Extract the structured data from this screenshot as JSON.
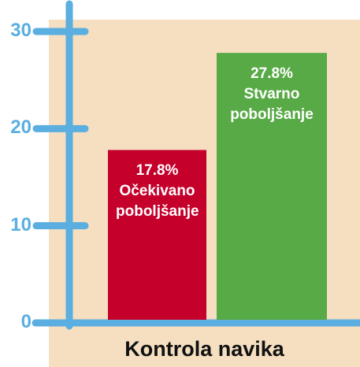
{
  "chart_data": {
    "type": "bar",
    "x_label": "Kontrola navika",
    "categories": [
      "Očekivano poboljšanje",
      "Stvarno poboljšanje"
    ],
    "values": [
      17.8,
      27.8
    ],
    "value_labels": [
      "17.8%",
      "27.8%"
    ],
    "colors": [
      "#c4002b",
      "#58aa46"
    ],
    "ylim": [
      0,
      30
    ],
    "yticks": [
      0,
      10,
      20,
      30
    ]
  }
}
